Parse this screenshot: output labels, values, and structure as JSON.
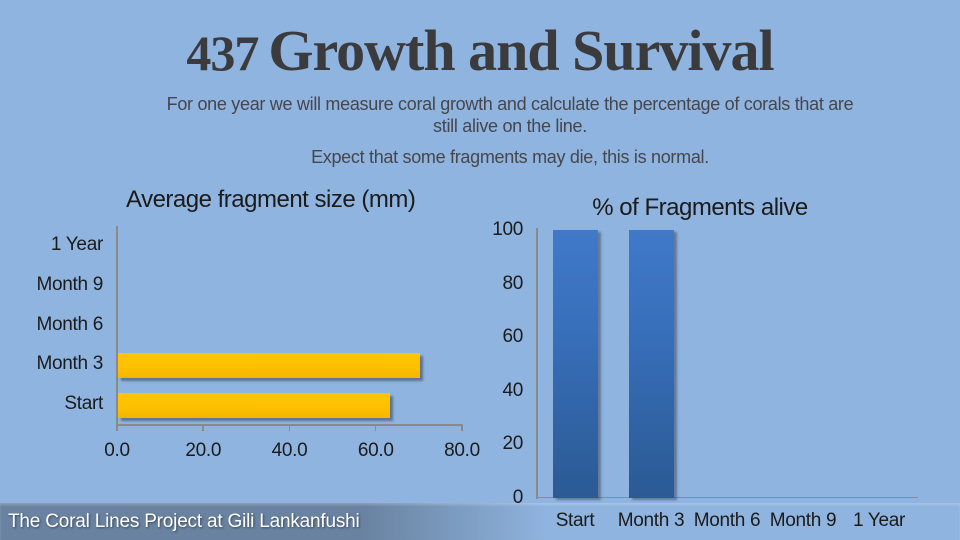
{
  "slide": {
    "title_number": "437",
    "title": "Growth and Survival",
    "subtitle_line1": "For one year we will measure coral growth and calculate the percentage of corals that are",
    "subtitle_line2": "still alive on the line.",
    "subtitle_line3": "Expect that some fragments may die, this is normal.",
    "footer": "The Coral Lines Project at Gili Lankanfushi"
  },
  "colors": {
    "background": "#8FB4DF",
    "bar_orange": "#FFC000",
    "bar_blue_top": "#4079C8",
    "bar_blue_bottom": "#2B5A94",
    "axis_gray": "#8A8A8A",
    "footer_band": "#68819F",
    "header_text": "#3B3B3D"
  },
  "chart_data": [
    {
      "type": "bar",
      "orientation": "horizontal",
      "title": "Average fragment size (mm)",
      "categories": [
        "Start",
        "Month 3",
        "Month 6",
        "Month 9",
        "1 Year"
      ],
      "values": [
        63,
        70,
        0,
        0,
        0
      ],
      "xlabel": "",
      "ylabel": "",
      "xlim": [
        0,
        80
      ],
      "x_ticks": [
        "0.0",
        "20.0",
        "40.0",
        "60.0",
        "80.0"
      ],
      "x_tick_values": [
        0,
        20,
        40,
        60,
        80
      ],
      "grid": false,
      "legend": "none",
      "bar_color": "#FFC000"
    },
    {
      "type": "bar",
      "orientation": "vertical",
      "title": "% of Fragments alive",
      "categories": [
        "Start",
        "Month 3",
        "Month 6",
        "Month 9",
        "1 Year"
      ],
      "values": [
        100,
        100,
        0,
        0,
        0
      ],
      "xlabel": "",
      "ylabel": "",
      "ylim": [
        0,
        100
      ],
      "y_ticks": [
        "0",
        "20",
        "40",
        "60",
        "80",
        "100"
      ],
      "y_tick_values": [
        0,
        20,
        40,
        60,
        80,
        100
      ],
      "grid": false,
      "legend": "none",
      "bar_color_top": "#4079C8",
      "bar_color_bottom": "#2B5A94"
    }
  ]
}
